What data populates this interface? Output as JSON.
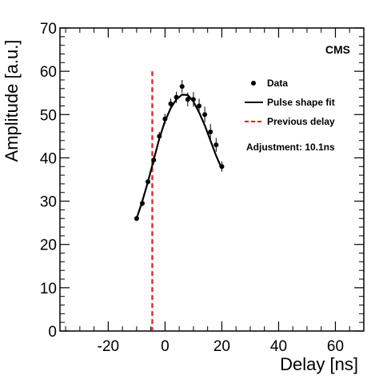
{
  "chart_data": {
    "type": "scatter",
    "xlabel": "Delay [ns]",
    "ylabel": "Amplitude [a.u.]",
    "xlim": [
      -37,
      70
    ],
    "ylim": [
      0,
      70
    ],
    "x_ticks": [
      -20,
      0,
      20,
      40,
      60
    ],
    "y_ticks": [
      0,
      10,
      20,
      30,
      40,
      50,
      60,
      70
    ],
    "grid": false,
    "experiment_label": "CMS",
    "legend": {
      "placement": "top-right",
      "entries": [
        {
          "label": "Data",
          "style": "marker",
          "color": "#000000"
        },
        {
          "label": "Pulse shape fit",
          "style": "solid-line",
          "color": "#000000"
        },
        {
          "label": "Previous delay",
          "style": "dashed-line",
          "color": "#e41a1c"
        }
      ]
    },
    "annotation": "Adjustment: 10.1ns",
    "series": [
      {
        "name": "Data",
        "type": "scatter_errorbar",
        "x": [
          -10,
          -8,
          -6,
          -4,
          -2,
          0,
          2,
          4,
          6,
          8,
          10,
          12,
          14,
          16,
          18,
          20
        ],
        "y": [
          26.0,
          29.5,
          34.5,
          39.5,
          45.0,
          49.0,
          52.5,
          54.0,
          56.5,
          53.5,
          53.5,
          52.0,
          50.0,
          46.0,
          43.0,
          38.0
        ],
        "err": [
          0.6,
          0.7,
          0.7,
          1.0,
          1.0,
          1.2,
          1.2,
          1.3,
          1.5,
          1.6,
          1.7,
          1.7,
          1.8,
          1.8,
          1.6,
          1.2
        ]
      },
      {
        "name": "Pulse shape fit",
        "type": "line",
        "x": [
          -10,
          -8,
          -6,
          -4,
          -2,
          0,
          2,
          4,
          6,
          8,
          10,
          12,
          14,
          16,
          18,
          20
        ],
        "y": [
          26.0,
          30.0,
          34.5,
          39.5,
          44.5,
          48.5,
          51.5,
          53.5,
          54.6,
          54.5,
          53.0,
          50.5,
          47.5,
          44.0,
          40.5,
          37.5
        ]
      }
    ],
    "reference_lines": [
      {
        "name": "Previous delay",
        "axis": "x",
        "value": -4.5,
        "color": "#e41a1c",
        "style": "dashed"
      }
    ]
  }
}
